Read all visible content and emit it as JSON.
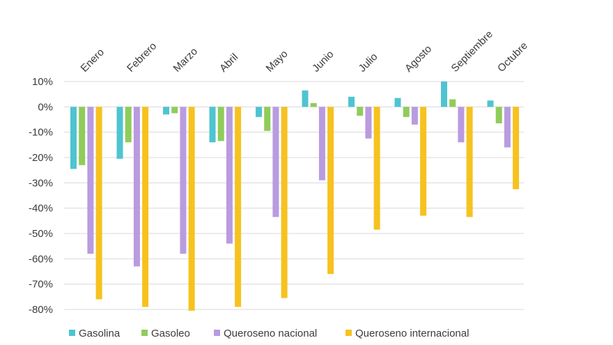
{
  "chart_data": {
    "type": "bar",
    "title": "",
    "xlabel": "",
    "ylabel": "",
    "ylim": [
      -80,
      10
    ],
    "y_ticks": [
      10,
      0,
      -10,
      -20,
      -30,
      -40,
      -50,
      -60,
      -70,
      -80
    ],
    "y_tick_labels": [
      "10%",
      "0%",
      "-10%",
      "-20%",
      "-30%",
      "-40%",
      "-50%",
      "-60%",
      "-70%",
      "-80%"
    ],
    "grid": true,
    "legend_position": "bottom",
    "categories": [
      "Enero",
      "Febrero",
      "Marzo",
      "Abril",
      "Mayo",
      "Junio",
      "Julio",
      "Agosto",
      "Septiembre",
      "Octubre"
    ],
    "series": [
      {
        "name": "Gasolina",
        "color": "#4ec4d0",
        "values": [
          -24.5,
          -20.5,
          -3.0,
          -14.0,
          -4.0,
          6.5,
          4.0,
          3.5,
          10.0,
          2.5
        ]
      },
      {
        "name": "Gasoleo",
        "color": "#8fcc5a",
        "values": [
          -23.0,
          -14.0,
          -2.5,
          -13.5,
          -9.5,
          1.5,
          -3.5,
          -4.0,
          3.0,
          -6.5
        ]
      },
      {
        "name": "Queroseno nacional",
        "color": "#b99be0",
        "values": [
          -58.0,
          -63.0,
          -58.0,
          -54.0,
          -43.5,
          -29.0,
          -12.5,
          -7.0,
          -14.0,
          -16.0
        ]
      },
      {
        "name": "Queroseno internacional",
        "color": "#f6c21f",
        "values": [
          -76.0,
          -79.0,
          -80.5,
          -79.0,
          -75.5,
          -66.0,
          -48.5,
          -43.0,
          -43.5,
          -32.5
        ]
      }
    ]
  }
}
